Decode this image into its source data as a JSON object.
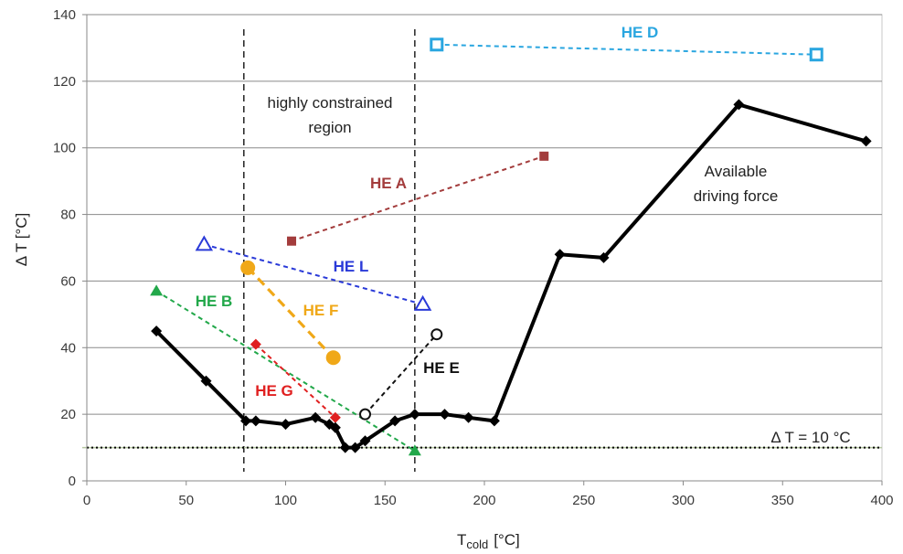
{
  "chart_data": {
    "type": "line",
    "title": "",
    "xlabel": "T",
    "xlabel_sub": "cold",
    "xlabel_unit": "[°C]",
    "ylabel": "Δ T [°C]",
    "xlim": [
      0,
      400
    ],
    "ylim": [
      0,
      140
    ],
    "xticks": [
      0,
      50,
      100,
      150,
      200,
      250,
      300,
      350,
      400
    ],
    "yticks": [
      0,
      20,
      40,
      60,
      80,
      100,
      120,
      140
    ],
    "grid": "horizontal",
    "driving_force": {
      "name": "Available driving force",
      "color": "#000000",
      "points": [
        [
          35,
          45
        ],
        [
          60,
          30
        ],
        [
          80,
          18
        ],
        [
          85,
          18
        ],
        [
          100,
          17
        ],
        [
          115,
          19
        ],
        [
          122,
          17
        ],
        [
          125,
          16
        ],
        [
          130,
          10
        ],
        [
          135,
          10
        ],
        [
          140,
          12
        ],
        [
          155,
          18
        ],
        [
          165,
          20
        ],
        [
          180,
          20
        ],
        [
          192,
          19
        ],
        [
          205,
          18
        ],
        [
          238,
          68
        ],
        [
          260,
          67
        ],
        [
          328,
          113
        ],
        [
          392,
          102
        ]
      ]
    },
    "exchangers": [
      {
        "name": "HE A",
        "color": "#a33c3c",
        "marker": "square-filled",
        "points": [
          [
            103,
            72
          ],
          [
            230,
            97.5
          ]
        ]
      },
      {
        "name": "HE B",
        "color": "#22a84a",
        "marker": "triangle-filled",
        "points": [
          [
            35,
            57
          ],
          [
            165,
            9
          ]
        ]
      },
      {
        "name": "HE D",
        "color": "#2aa6e0",
        "marker": "square-open",
        "points": [
          [
            176,
            131
          ],
          [
            367,
            128
          ]
        ]
      },
      {
        "name": "HE E",
        "color": "#111111",
        "marker": "circle-open",
        "points": [
          [
            140,
            20
          ],
          [
            176,
            44
          ]
        ]
      },
      {
        "name": "HE F",
        "color": "#f0a818",
        "marker": "circle-filled",
        "points": [
          [
            81,
            64
          ],
          [
            124,
            37
          ]
        ]
      },
      {
        "name": "HE G",
        "color": "#e02020",
        "marker": "diamond-filled",
        "points": [
          [
            85,
            41
          ],
          [
            125,
            19
          ]
        ]
      },
      {
        "name": "HE L",
        "color": "#2a3ad8",
        "marker": "triangle-open",
        "points": [
          [
            59,
            71
          ],
          [
            169,
            53
          ]
        ]
      }
    ],
    "reference_line": {
      "label": "Δ T = 10 °C",
      "y": 10
    },
    "region": {
      "label_line1": "highly constrained",
      "label_line2": "region",
      "x_start": 79,
      "x_end": 165
    }
  }
}
